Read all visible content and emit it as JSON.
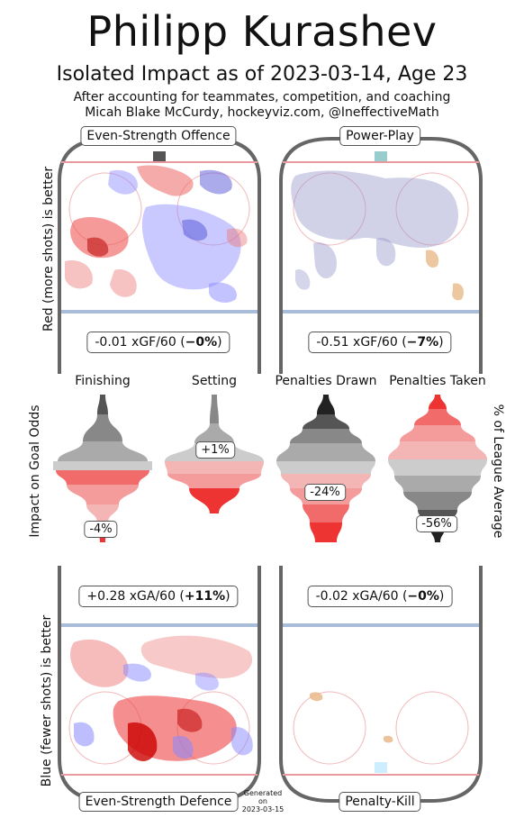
{
  "header": {
    "title": "Philipp Kurashev",
    "subtitle": "Isolated Impact as of 2023-03-14, Age 23",
    "line1": "After accounting for teammates, competition, and coaching",
    "line2": "Micah Blake McCurdy, hockeyviz.com, @IneffectiveMath"
  },
  "rinks": {
    "ev_offence": {
      "label": "Even-Strength Offence",
      "stat_value": "-0.01 xGF/60 (",
      "stat_pct": "−0%",
      "stat_close": ")"
    },
    "power_play": {
      "label": "Power-Play",
      "stat_value": "-0.51 xGF/60 (",
      "stat_pct": "−7%",
      "stat_close": ")"
    },
    "ev_defence": {
      "label": "Even-Strength Defence",
      "stat_value": "+0.28 xGA/60 (",
      "stat_pct": "+11%",
      "stat_close": ")"
    },
    "penalty_kill": {
      "label": "Penalty-Kill",
      "stat_value": "-0.02 xGA/60 (",
      "stat_pct": "−0%",
      "stat_close": ")"
    }
  },
  "side_labels": {
    "top_left": "Red (more shots) is better",
    "middle_left": "Impact on Goal Odds",
    "middle_right": "% of League Average",
    "bottom_left": "Blue (fewer shots) is better"
  },
  "generated": {
    "line1": "Generated",
    "line2": "on",
    "date": "2023-03-15"
  },
  "chart_data": {
    "type": "violin",
    "categories": [
      "Finishing",
      "Setting",
      "Penalties Drawn",
      "Penalties Taken"
    ],
    "values_label": [
      "-4%",
      "+1%",
      "-24%",
      "-56%"
    ],
    "values": [
      -4,
      1,
      -24,
      -56
    ],
    "units": "%"
  },
  "colors": {
    "red": "#e8413c",
    "blue": "#5a5fd8",
    "gray_dark": "#555555",
    "rink_line_red": "#e89aa0",
    "rink_line_blue": "#a9bcd8"
  }
}
